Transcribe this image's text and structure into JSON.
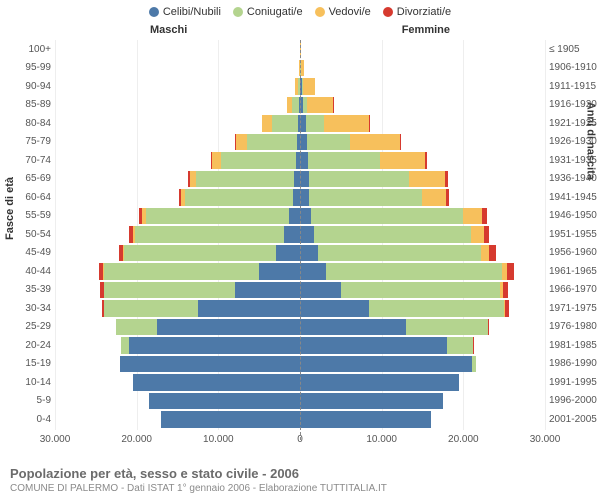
{
  "title": "Popolazione per età, sesso e stato civile - 2006",
  "subtitle": "COMUNE DI PALERMO - Dati ISTAT 1° gennaio 2006 - Elaborazione TUTTITALIA.IT",
  "legend": [
    {
      "label": "Celibi/Nubili",
      "color": "#4d79a8"
    },
    {
      "label": "Coniugati/e",
      "color": "#b4d48f"
    },
    {
      "label": "Vedovi/e",
      "color": "#f7c05c"
    },
    {
      "label": "Divorziati/e",
      "color": "#d63a2f"
    }
  ],
  "side_labels": {
    "left": "Maschi",
    "right": "Femmine"
  },
  "yaxis_left": "Fasce di età",
  "yaxis_right": "Anni di nascita",
  "xaxis": {
    "max": 30000,
    "ticks_left": [
      "30.000",
      "20.000",
      "10.000",
      "0"
    ],
    "ticks_right": [
      "0",
      "10.000",
      "20.000",
      "30.000"
    ],
    "tick_vals_left": [
      30000,
      20000,
      10000,
      0
    ],
    "tick_vals_right": [
      0,
      10000,
      20000,
      30000
    ]
  },
  "colors": {
    "celibi": "#4d79a8",
    "coniugati": "#b4d48f",
    "vedovi": "#f7c05c",
    "divorziati": "#d63a2f",
    "grid": "#eeeeee",
    "center": "#888888",
    "bg": "#ffffff"
  },
  "rows": [
    {
      "age": "100+",
      "birth": "≤ 1905",
      "m": {
        "c": 5,
        "co": 5,
        "v": 15,
        "d": 0
      },
      "f": {
        "c": 10,
        "co": 5,
        "v": 80,
        "d": 0
      }
    },
    {
      "age": "95-99",
      "birth": "1906-1910",
      "m": {
        "c": 15,
        "co": 30,
        "v": 60,
        "d": 0
      },
      "f": {
        "c": 60,
        "co": 20,
        "v": 400,
        "d": 0
      }
    },
    {
      "age": "90-94",
      "birth": "1911-1915",
      "m": {
        "c": 40,
        "co": 250,
        "v": 300,
        "d": 5
      },
      "f": {
        "c": 200,
        "co": 120,
        "v": 1500,
        "d": 5
      }
    },
    {
      "age": "85-89",
      "birth": "1916-1920",
      "m": {
        "c": 80,
        "co": 900,
        "v": 600,
        "d": 10
      },
      "f": {
        "c": 400,
        "co": 500,
        "v": 3100,
        "d": 15
      }
    },
    {
      "age": "80-84",
      "birth": "1921-1925",
      "m": {
        "c": 200,
        "co": 3200,
        "v": 1200,
        "d": 30
      },
      "f": {
        "c": 700,
        "co": 2200,
        "v": 5500,
        "d": 50
      }
    },
    {
      "age": "75-79",
      "birth": "1926-1930",
      "m": {
        "c": 350,
        "co": 6200,
        "v": 1300,
        "d": 70
      },
      "f": {
        "c": 900,
        "co": 5200,
        "v": 6200,
        "d": 120
      }
    },
    {
      "age": "70-74",
      "birth": "1931-1935",
      "m": {
        "c": 500,
        "co": 9200,
        "v": 1100,
        "d": 120
      },
      "f": {
        "c": 1000,
        "co": 8800,
        "v": 5500,
        "d": 200
      }
    },
    {
      "age": "65-69",
      "birth": "1936-1940",
      "m": {
        "c": 700,
        "co": 12000,
        "v": 800,
        "d": 180
      },
      "f": {
        "c": 1100,
        "co": 12200,
        "v": 4500,
        "d": 300
      }
    },
    {
      "age": "60-64",
      "birth": "1941-1945",
      "m": {
        "c": 900,
        "co": 13200,
        "v": 500,
        "d": 250
      },
      "f": {
        "c": 1100,
        "co": 13800,
        "v": 3000,
        "d": 400
      }
    },
    {
      "age": "55-59",
      "birth": "1946-1950",
      "m": {
        "c": 1400,
        "co": 17500,
        "v": 400,
        "d": 400
      },
      "f": {
        "c": 1400,
        "co": 18500,
        "v": 2400,
        "d": 600
      }
    },
    {
      "age": "50-54",
      "birth": "1951-1955",
      "m": {
        "c": 2000,
        "co": 18200,
        "v": 250,
        "d": 450
      },
      "f": {
        "c": 1700,
        "co": 19200,
        "v": 1600,
        "d": 700
      }
    },
    {
      "age": "45-49",
      "birth": "1956-1960",
      "m": {
        "c": 3000,
        "co": 18500,
        "v": 150,
        "d": 500
      },
      "f": {
        "c": 2200,
        "co": 20000,
        "v": 1000,
        "d": 800
      }
    },
    {
      "age": "40-44",
      "birth": "1961-1965",
      "m": {
        "c": 5000,
        "co": 19000,
        "v": 80,
        "d": 500
      },
      "f": {
        "c": 3200,
        "co": 21500,
        "v": 600,
        "d": 900
      }
    },
    {
      "age": "35-39",
      "birth": "1966-1970",
      "m": {
        "c": 8000,
        "co": 16000,
        "v": 40,
        "d": 400
      },
      "f": {
        "c": 5000,
        "co": 19500,
        "v": 300,
        "d": 700
      }
    },
    {
      "age": "30-34",
      "birth": "1971-1975",
      "m": {
        "c": 12500,
        "co": 11500,
        "v": 20,
        "d": 250
      },
      "f": {
        "c": 8500,
        "co": 16500,
        "v": 150,
        "d": 450
      }
    },
    {
      "age": "25-29",
      "birth": "1976-1980",
      "m": {
        "c": 17500,
        "co": 5000,
        "v": 5,
        "d": 80
      },
      "f": {
        "c": 13000,
        "co": 10000,
        "v": 50,
        "d": 150
      }
    },
    {
      "age": "20-24",
      "birth": "1981-1985",
      "m": {
        "c": 21000,
        "co": 900,
        "v": 0,
        "d": 10
      },
      "f": {
        "c": 18000,
        "co": 3200,
        "v": 10,
        "d": 30
      }
    },
    {
      "age": "15-19",
      "birth": "1986-1990",
      "m": {
        "c": 22000,
        "co": 40,
        "v": 0,
        "d": 0
      },
      "f": {
        "c": 21000,
        "co": 500,
        "v": 0,
        "d": 0
      }
    },
    {
      "age": "10-14",
      "birth": "1991-1995",
      "m": {
        "c": 20500,
        "co": 0,
        "v": 0,
        "d": 0
      },
      "f": {
        "c": 19500,
        "co": 0,
        "v": 0,
        "d": 0
      }
    },
    {
      "age": "5-9",
      "birth": "1996-2000",
      "m": {
        "c": 18500,
        "co": 0,
        "v": 0,
        "d": 0
      },
      "f": {
        "c": 17500,
        "co": 0,
        "v": 0,
        "d": 0
      }
    },
    {
      "age": "0-4",
      "birth": "2001-2005",
      "m": {
        "c": 17000,
        "co": 0,
        "v": 0,
        "d": 0
      },
      "f": {
        "c": 16000,
        "co": 0,
        "v": 0,
        "d": 0
      }
    }
  ]
}
